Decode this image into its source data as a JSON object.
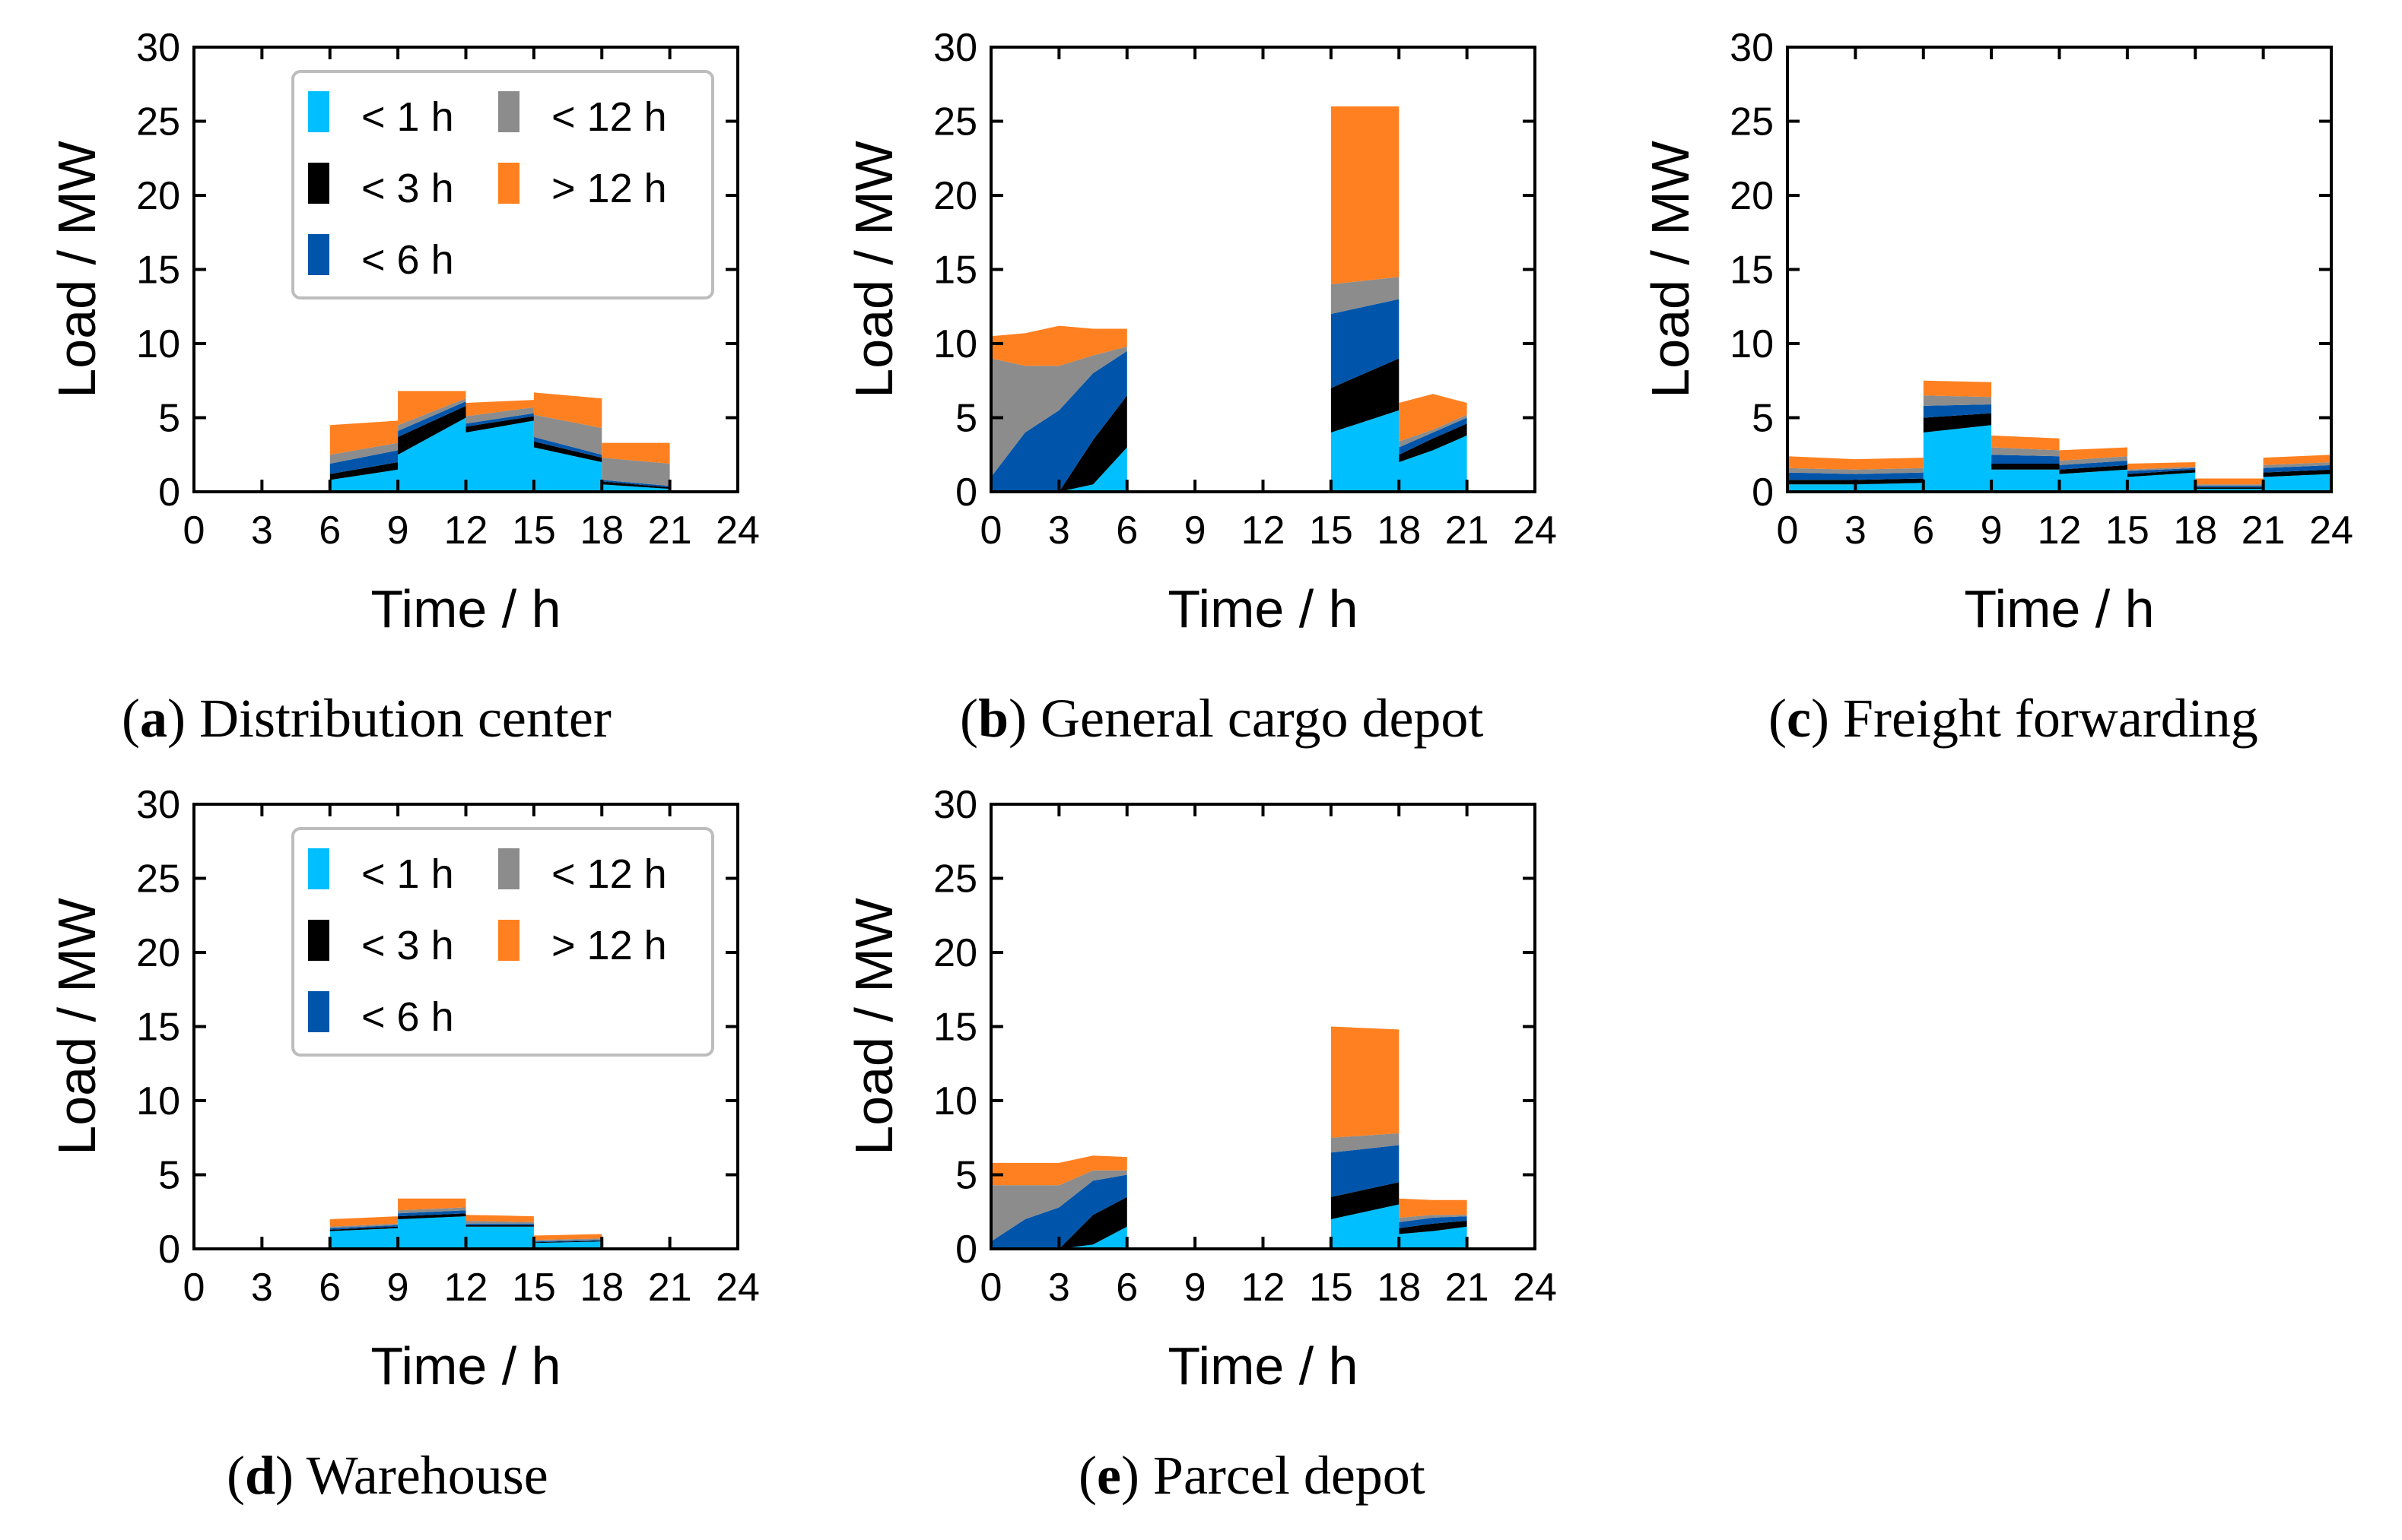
{
  "colors": {
    "lt1h": "#00bfff",
    "lt3h": "#000000",
    "lt6h": "#0055aa",
    "lt12h": "#8c8c8c",
    "gt12h": "#ff8020"
  },
  "legend_entries": [
    {
      "key": "lt1h",
      "label": "< 1 h"
    },
    {
      "key": "lt12h",
      "label": "< 12 h"
    },
    {
      "key": "lt3h",
      "label": "< 3 h"
    },
    {
      "key": "gt12h",
      "label": "> 12 h"
    },
    {
      "key": "lt6h",
      "label": "< 6 h"
    }
  ],
  "chart_data": [
    {
      "id": "a",
      "type": "area",
      "stacked": true,
      "caption_letter": "a",
      "caption_text": ") Distribution center",
      "xlabel": "Time / h",
      "ylabel": "Load / MW",
      "xlim": [
        0,
        24
      ],
      "ylim": [
        0,
        30
      ],
      "xticks": [
        0,
        3,
        6,
        9,
        12,
        15,
        18,
        21,
        24
      ],
      "yticks": [
        0,
        5,
        10,
        15,
        20,
        25,
        30
      ],
      "legend": true,
      "x": [
        0,
        6,
        6,
        9,
        9,
        12,
        12,
        15,
        15,
        18,
        18,
        21,
        21,
        24
      ],
      "series": [
        {
          "name": "< 1 h",
          "key": "lt1h",
          "values": [
            0,
            0,
            0.8,
            1.5,
            2.5,
            5,
            4,
            4.8,
            3,
            2,
            0.5,
            0.2,
            0,
            0
          ]
        },
        {
          "name": "< 3 h",
          "key": "lt3h",
          "values": [
            0,
            0,
            0.4,
            0.5,
            1.2,
            0.8,
            0.4,
            0.3,
            0.4,
            0.3,
            0.2,
            0.1,
            0,
            0
          ]
        },
        {
          "name": "< 6 h",
          "key": "lt6h",
          "values": [
            0,
            0,
            0.7,
            0.8,
            0.4,
            0.3,
            0.2,
            0.2,
            0.3,
            0.2,
            0.1,
            0.1,
            0,
            0
          ]
        },
        {
          "name": "< 12 h",
          "key": "lt12h",
          "values": [
            0,
            0,
            0.6,
            0.5,
            0.4,
            0.2,
            0.5,
            0.4,
            1.5,
            1.8,
            1.5,
            1.5,
            0,
            0
          ]
        },
        {
          "name": "> 12 h",
          "key": "gt12h",
          "values": [
            0,
            0,
            2,
            1.5,
            2.3,
            0.5,
            0.9,
            0.5,
            1.5,
            2,
            1,
            1.4,
            0,
            0
          ]
        }
      ]
    },
    {
      "id": "b",
      "type": "area",
      "stacked": true,
      "caption_letter": "b",
      "caption_text": ") General cargo depot",
      "xlabel": "Time / h",
      "ylabel": "Load / MW",
      "xlim": [
        0,
        24
      ],
      "ylim": [
        0,
        30
      ],
      "xticks": [
        0,
        3,
        6,
        9,
        12,
        15,
        18,
        21,
        24
      ],
      "yticks": [
        0,
        5,
        10,
        15,
        20,
        25,
        30
      ],
      "legend": false,
      "x": [
        0,
        1.5,
        3,
        4.5,
        6,
        6,
        15,
        15,
        18,
        18,
        19.5,
        21,
        21,
        24
      ],
      "series": [
        {
          "name": "< 1 h",
          "key": "lt1h",
          "values": [
            0,
            0,
            0,
            0.5,
            3,
            0,
            0,
            4,
            5.5,
            2,
            2.8,
            3.8,
            0,
            0
          ]
        },
        {
          "name": "< 3 h",
          "key": "lt3h",
          "values": [
            0,
            0,
            0,
            3,
            3.5,
            0,
            0,
            3,
            3.5,
            0.5,
            0.8,
            0.8,
            0,
            0
          ]
        },
        {
          "name": "< 6 h",
          "key": "lt6h",
          "values": [
            1,
            4,
            5.5,
            4.5,
            3,
            0,
            0,
            5,
            4,
            0.5,
            0.4,
            0.4,
            0,
            0
          ]
        },
        {
          "name": "< 12 h",
          "key": "lt12h",
          "values": [
            8,
            4.5,
            3,
            1.2,
            0.3,
            0,
            0,
            2,
            1.5,
            0.4,
            0.2,
            0.2,
            0,
            0
          ]
        },
        {
          "name": "> 12 h",
          "key": "gt12h",
          "values": [
            1.5,
            2.2,
            2.7,
            1.8,
            1.2,
            0,
            0,
            12,
            11.5,
            2.6,
            2.4,
            0.8,
            0,
            0
          ]
        }
      ]
    },
    {
      "id": "c",
      "type": "area",
      "stacked": true,
      "caption_letter": "c",
      "caption_text": ") Freight forwarding",
      "xlabel": "Time / h",
      "ylabel": "Load / MW",
      "xlim": [
        0,
        24
      ],
      "ylim": [
        0,
        30
      ],
      "xticks": [
        0,
        3,
        6,
        9,
        12,
        15,
        18,
        21,
        24
      ],
      "yticks": [
        0,
        5,
        10,
        15,
        20,
        25,
        30
      ],
      "legend": false,
      "x": [
        0,
        3,
        6,
        6,
        9,
        9,
        12,
        12,
        15,
        15,
        18,
        18,
        21,
        21,
        24
      ],
      "series": [
        {
          "name": "< 1 h",
          "key": "lt1h",
          "values": [
            0.5,
            0.5,
            0.6,
            4,
            4.5,
            1.5,
            1.5,
            1.2,
            1.5,
            1,
            1.3,
            0.2,
            0.2,
            1,
            1.2
          ]
        },
        {
          "name": "< 3 h",
          "key": "lt3h",
          "values": [
            0.3,
            0.3,
            0.3,
            1,
            0.8,
            0.4,
            0.4,
            0.3,
            0.3,
            0.2,
            0.2,
            0.1,
            0.1,
            0.3,
            0.3
          ]
        },
        {
          "name": "< 6 h",
          "key": "lt6h",
          "values": [
            0.5,
            0.4,
            0.4,
            0.8,
            0.6,
            0.6,
            0.5,
            0.3,
            0.3,
            0.2,
            0.1,
            0.1,
            0.1,
            0.3,
            0.3
          ]
        },
        {
          "name": "< 12 h",
          "key": "lt12h",
          "values": [
            0.3,
            0.3,
            0.3,
            0.7,
            0.5,
            0.5,
            0.4,
            0.3,
            0.3,
            0.1,
            0.1,
            0.1,
            0.1,
            0.2,
            0.2
          ]
        },
        {
          "name": "> 12 h",
          "key": "gt12h",
          "values": [
            0.8,
            0.7,
            0.7,
            1,
            1,
            0.8,
            0.8,
            0.7,
            0.6,
            0.4,
            0.3,
            0.4,
            0.4,
            0.5,
            0.5
          ]
        }
      ]
    },
    {
      "id": "d",
      "type": "area",
      "stacked": true,
      "caption_letter": "d",
      "caption_text": ") Warehouse",
      "xlabel": "Time / h",
      "ylabel": "Load / MW",
      "xlim": [
        0,
        24
      ],
      "ylim": [
        0,
        30
      ],
      "xticks": [
        0,
        3,
        6,
        9,
        12,
        15,
        18,
        21,
        24
      ],
      "yticks": [
        0,
        5,
        10,
        15,
        20,
        25,
        30
      ],
      "legend": true,
      "x": [
        0,
        6,
        6,
        9,
        9,
        12,
        12,
        15,
        15,
        18,
        18,
        24
      ],
      "series": [
        {
          "name": "< 1 h",
          "key": "lt1h",
          "values": [
            0,
            0,
            1.2,
            1.4,
            2,
            2.2,
            1.5,
            1.5,
            0.4,
            0.5,
            0,
            0
          ]
        },
        {
          "name": "< 3 h",
          "key": "lt3h",
          "values": [
            0,
            0,
            0.1,
            0.1,
            0.2,
            0.2,
            0.1,
            0.1,
            0.05,
            0.05,
            0,
            0
          ]
        },
        {
          "name": "< 6 h",
          "key": "lt6h",
          "values": [
            0,
            0,
            0.1,
            0.1,
            0.2,
            0.2,
            0.1,
            0.1,
            0.05,
            0.05,
            0,
            0
          ]
        },
        {
          "name": "< 12 h",
          "key": "lt12h",
          "values": [
            0,
            0,
            0.1,
            0.1,
            0.2,
            0.2,
            0.2,
            0.1,
            0.1,
            0.1,
            0,
            0
          ]
        },
        {
          "name": "> 12 h",
          "key": "gt12h",
          "values": [
            0,
            0,
            0.5,
            0.5,
            0.8,
            0.6,
            0.4,
            0.4,
            0.3,
            0.3,
            0,
            0
          ]
        }
      ]
    },
    {
      "id": "e",
      "type": "area",
      "stacked": true,
      "caption_letter": "e",
      "caption_text": ") Parcel depot",
      "xlabel": "Time / h",
      "ylabel": "Load / MW",
      "xlim": [
        0,
        24
      ],
      "ylim": [
        0,
        30
      ],
      "xticks": [
        0,
        3,
        6,
        9,
        12,
        15,
        18,
        21,
        24
      ],
      "yticks": [
        0,
        5,
        10,
        15,
        20,
        25,
        30
      ],
      "legend": false,
      "x": [
        0,
        1.5,
        3,
        4.5,
        6,
        6,
        15,
        15,
        18,
        18,
        19.5,
        21,
        21,
        24
      ],
      "series": [
        {
          "name": "< 1 h",
          "key": "lt1h",
          "values": [
            0,
            0,
            0,
            0.3,
            1.5,
            0,
            0,
            2,
            3,
            1,
            1.2,
            1.5,
            0,
            0
          ]
        },
        {
          "name": "< 3 h",
          "key": "lt3h",
          "values": [
            0,
            0,
            0,
            2,
            2,
            0,
            0,
            1.5,
            1.5,
            0.4,
            0.5,
            0.4,
            0,
            0
          ]
        },
        {
          "name": "< 6 h",
          "key": "lt6h",
          "values": [
            0.5,
            2,
            2.8,
            2.3,
            1.5,
            0,
            0,
            3,
            2.5,
            0.4,
            0.4,
            0.3,
            0,
            0
          ]
        },
        {
          "name": "< 12 h",
          "key": "lt12h",
          "values": [
            3.8,
            2.3,
            1.5,
            0.7,
            0.3,
            0,
            0,
            1,
            0.8,
            0.3,
            0.2,
            0.1,
            0,
            0
          ]
        },
        {
          "name": "> 12 h",
          "key": "gt12h",
          "values": [
            1.5,
            1.5,
            1.5,
            1,
            0.9,
            0,
            0,
            7.5,
            7,
            1.3,
            1,
            1,
            0,
            0
          ]
        }
      ]
    }
  ]
}
